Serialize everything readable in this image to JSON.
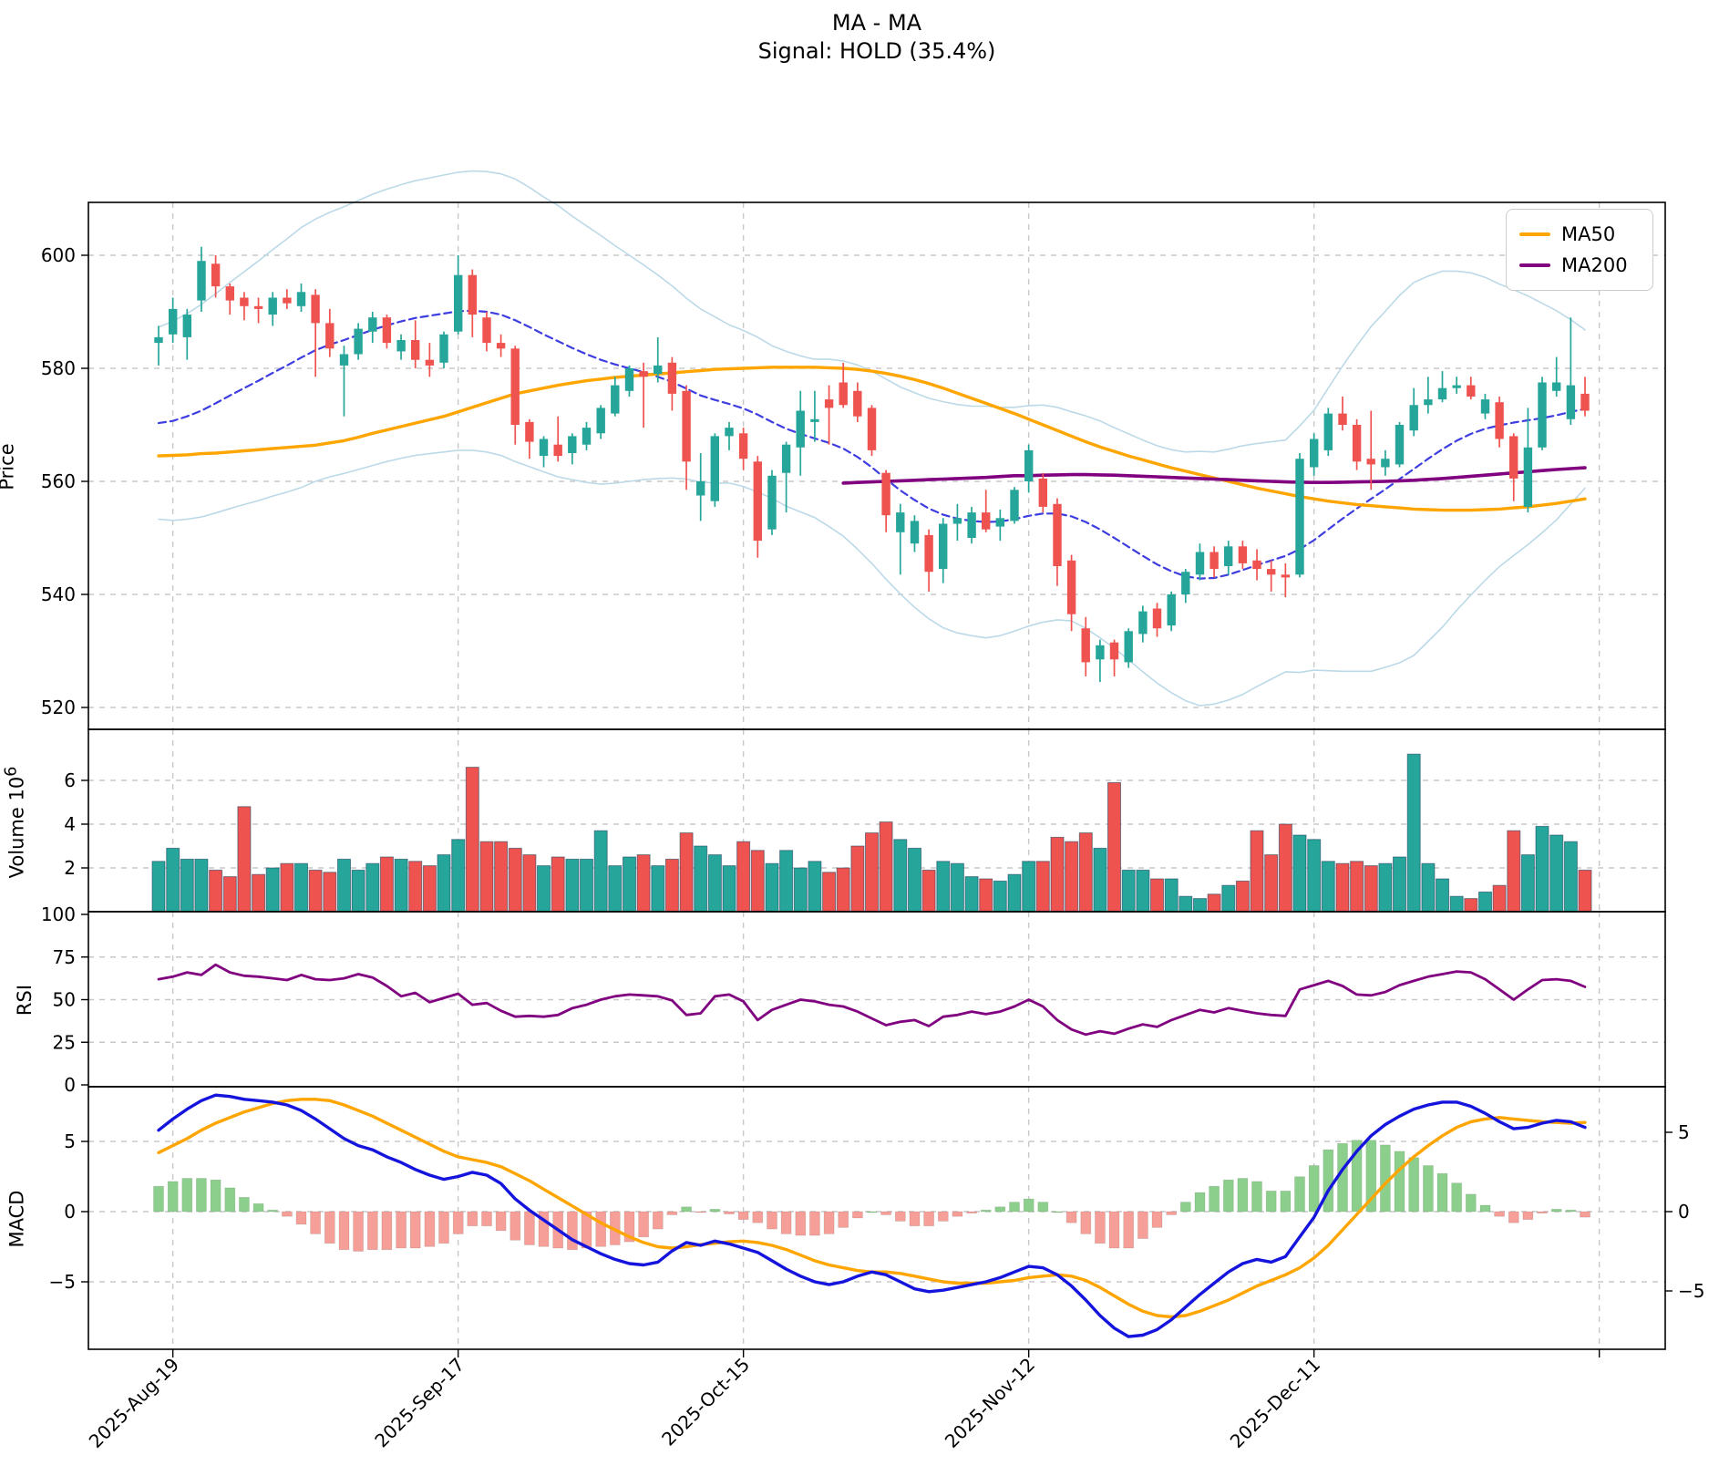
{
  "title": {
    "line1": "MA - MA",
    "line2": "Signal: HOLD (35.4%)"
  },
  "legend": [
    {
      "label": "MA50",
      "color": "#ffa500"
    },
    {
      "label": "MA200",
      "color": "#800080"
    }
  ],
  "axes": {
    "price_label": "Price",
    "volume_label": "Volume",
    "volume_label_base": "10",
    "volume_label_sup": "6",
    "rsi_label": "RSI",
    "macd_label": "MACD",
    "price_ticks": [
      600,
      580,
      560,
      540,
      520
    ],
    "volume_ticks": [
      6,
      4,
      2
    ],
    "rsi_ticks": [
      100,
      75,
      50,
      25,
      0
    ],
    "macd_left_ticks": [
      5,
      0,
      -5
    ],
    "macd_right_ticks": [
      5,
      0,
      -5
    ]
  },
  "chart_data": {
    "type": "candlestick",
    "title": "MA - MA",
    "subtitle": "Signal: HOLD (35.4%)",
    "x_ticks": [
      {
        "day": 1,
        "label": "2025-Aug-19"
      },
      {
        "day": 21,
        "label": "2025-Sep-17"
      },
      {
        "day": 41,
        "label": "2025-Oct-15"
      },
      {
        "day": 61,
        "label": "2025-Nov-12"
      },
      {
        "day": 81,
        "label": "2025-Dec-11"
      },
      {
        "day": 101,
        "label": ""
      }
    ],
    "price_ylim": [
      516,
      609.5
    ],
    "volume_ylim": [
      0,
      8.3
    ],
    "rsi_ylim": [
      0,
      100
    ],
    "macd_left_ylim": [
      -9.8,
      8.9
    ],
    "macd_right_ylim": [
      -8.7,
      7.9
    ],
    "colors": {
      "up": "#26a69a",
      "down": "#ef5350",
      "ma50": "#ffa500",
      "ma200": "#800080",
      "bb_band": "#bcd9e8",
      "bb_mid": "#3d3de0",
      "macd_line": "#1414dd",
      "macd_signal": "#ffa500",
      "hist_up": "#8ccf8c",
      "hist_down": "#f59f98",
      "rsi_line": "#800080",
      "grid": "#c8c8c8"
    },
    "ohlc": [
      [
        584.5,
        587.5,
        580.5,
        585.5
      ],
      [
        586,
        592.5,
        584.5,
        590.5
      ],
      [
        585.5,
        590.5,
        581.5,
        589.5
      ],
      [
        592,
        601.5,
        590,
        599
      ],
      [
        598.5,
        600,
        592.5,
        594.5
      ],
      [
        594.5,
        595,
        589.5,
        592
      ],
      [
        592.5,
        593.5,
        588.5,
        591
      ],
      [
        591,
        592.5,
        588,
        590.5
      ],
      [
        589.5,
        593.5,
        587.5,
        592.5
      ],
      [
        592.5,
        594,
        590.5,
        591.5
      ],
      [
        591,
        595,
        590,
        593.5
      ],
      [
        593,
        594,
        578.5,
        588
      ],
      [
        588,
        590.5,
        582,
        583.5
      ],
      [
        580.5,
        584,
        571.5,
        582.5
      ],
      [
        582.5,
        588,
        581.5,
        587
      ],
      [
        586.5,
        590,
        584.5,
        589
      ],
      [
        589,
        589.5,
        583.5,
        584.5
      ],
      [
        583,
        586,
        581.5,
        585
      ],
      [
        585,
        588.5,
        580,
        581.5
      ],
      [
        581.5,
        584.5,
        578.5,
        580.5
      ],
      [
        581,
        586.5,
        580,
        586
      ],
      [
        586.5,
        600,
        586,
        596.5
      ],
      [
        596.5,
        597.5,
        585.5,
        589.5
      ],
      [
        589,
        590,
        583,
        584.5
      ],
      [
        584.5,
        586,
        582,
        583.5
      ],
      [
        583.5,
        584,
        566.5,
        570
      ],
      [
        570.5,
        571,
        564,
        567
      ],
      [
        564.5,
        568,
        562.5,
        567.5
      ],
      [
        566.5,
        571.5,
        563.5,
        564.5
      ],
      [
        565,
        568.5,
        563,
        568
      ],
      [
        566.5,
        570.5,
        565.5,
        569.5
      ],
      [
        568.5,
        573.5,
        567.5,
        573
      ],
      [
        572,
        578.5,
        571.5,
        577
      ],
      [
        576,
        580.5,
        575,
        580
      ],
      [
        579.5,
        581,
        569.5,
        578.5
      ],
      [
        579,
        585.5,
        577.5,
        580.5
      ],
      [
        581,
        582,
        572.5,
        575.5
      ],
      [
        576,
        577,
        558.5,
        563.5
      ],
      [
        557.5,
        565,
        553,
        560
      ],
      [
        556.5,
        568.5,
        555.5,
        568
      ],
      [
        568,
        570.5,
        565.5,
        569.5
      ],
      [
        568.5,
        569.5,
        562,
        564
      ],
      [
        563.5,
        564.5,
        546.5,
        549.5
      ],
      [
        551.5,
        562,
        550.5,
        561
      ],
      [
        561.5,
        567,
        554.5,
        566.5
      ],
      [
        566,
        576,
        561,
        572.5
      ],
      [
        570.5,
        576,
        567,
        571
      ],
      [
        574.5,
        577,
        566.5,
        573
      ],
      [
        577.5,
        581,
        573,
        573.5
      ],
      [
        576,
        577.5,
        570.5,
        571.5
      ],
      [
        573,
        573.5,
        564.5,
        565.5
      ],
      [
        561.5,
        562,
        551,
        554
      ],
      [
        551,
        556,
        543.5,
        554.5
      ],
      [
        549,
        554,
        547.5,
        553
      ],
      [
        550.5,
        551.5,
        540.5,
        544
      ],
      [
        544.5,
        553.5,
        542,
        552.5
      ],
      [
        552.5,
        556,
        549.5,
        553.5
      ],
      [
        550,
        555.5,
        549,
        554.5
      ],
      [
        554.5,
        558.5,
        551,
        551.5
      ],
      [
        552,
        555,
        549.5,
        553.5
      ],
      [
        553,
        559,
        552.5,
        558.5
      ],
      [
        560,
        566.5,
        558,
        565.5
      ],
      [
        560.5,
        561.5,
        554.5,
        555.5
      ],
      [
        556,
        557,
        541.5,
        545
      ],
      [
        546,
        547,
        533.5,
        536.5
      ],
      [
        534,
        536,
        525.5,
        528
      ],
      [
        528.5,
        532,
        524.5,
        531
      ],
      [
        531.5,
        532,
        525.5,
        528.5
      ],
      [
        528,
        534,
        527,
        533.5
      ],
      [
        533,
        538,
        531.5,
        537
      ],
      [
        537.5,
        538.5,
        532.5,
        534
      ],
      [
        534.5,
        540.5,
        533.5,
        540
      ],
      [
        540,
        544.5,
        538.5,
        544
      ],
      [
        543.5,
        549,
        542.5,
        547.5
      ],
      [
        547.5,
        548.5,
        543,
        544.5
      ],
      [
        545,
        549.5,
        543.5,
        548.5
      ],
      [
        548.5,
        549.5,
        544.5,
        545.5
      ],
      [
        546,
        548,
        542.5,
        544.5
      ],
      [
        544.5,
        546,
        540.5,
        543.5
      ],
      [
        543.5,
        545.5,
        539.5,
        543
      ],
      [
        543.5,
        565,
        543,
        564
      ],
      [
        562.5,
        568.5,
        561,
        567.5
      ],
      [
        565.5,
        573,
        564.5,
        572
      ],
      [
        572,
        575,
        569,
        570
      ],
      [
        570,
        571,
        562,
        563.5
      ],
      [
        564,
        572.5,
        558.5,
        563
      ],
      [
        562.5,
        565.5,
        561,
        564
      ],
      [
        563,
        570.5,
        562.5,
        570
      ],
      [
        569,
        576.5,
        568,
        573.5
      ],
      [
        573.5,
        578.5,
        572,
        574.5
      ],
      [
        574.5,
        579.5,
        574,
        576.5
      ],
      [
        576.5,
        578.5,
        575.5,
        577
      ],
      [
        577,
        578.5,
        574.5,
        575
      ],
      [
        572,
        575.5,
        571,
        574.5
      ],
      [
        574,
        575,
        566,
        567.5
      ],
      [
        568,
        568.5,
        556.5,
        560.5
      ],
      [
        555.5,
        573,
        554.5,
        566
      ],
      [
        566,
        578.5,
        565.5,
        577.5
      ],
      [
        576,
        582,
        575,
        577.5
      ],
      [
        571,
        589,
        570,
        577
      ],
      [
        575.5,
        578.5,
        571.5,
        572.5
      ]
    ],
    "volume": [
      2.3,
      2.9,
      2.4,
      2.4,
      1.9,
      1.6,
      4.8,
      1.7,
      2.0,
      2.2,
      2.2,
      1.9,
      1.8,
      2.4,
      1.9,
      2.2,
      2.5,
      2.4,
      2.3,
      2.1,
      2.6,
      3.3,
      6.6,
      3.2,
      3.2,
      2.9,
      2.6,
      2.1,
      2.5,
      2.4,
      2.4,
      3.7,
      2.1,
      2.5,
      2.6,
      2.1,
      2.4,
      3.6,
      3.0,
      2.6,
      2.1,
      3.2,
      2.8,
      2.2,
      2.8,
      2.0,
      2.3,
      1.8,
      2.0,
      3.0,
      3.6,
      4.1,
      3.3,
      2.9,
      1.9,
      2.3,
      2.2,
      1.6,
      1.5,
      1.4,
      1.7,
      2.3,
      2.3,
      3.4,
      3.2,
      3.6,
      2.9,
      5.9,
      1.9,
      1.9,
      1.5,
      1.5,
      0.7,
      0.6,
      0.8,
      1.2,
      1.4,
      3.7,
      2.6,
      4.0,
      3.5,
      3.3,
      2.3,
      2.2,
      2.3,
      2.1,
      2.2,
      2.5,
      7.2,
      2.2,
      1.5,
      0.7,
      0.6,
      0.9,
      1.2,
      3.7,
      2.6,
      3.9,
      3.5,
      3.2,
      1.9
    ],
    "ma50": [
      564.5,
      564.6,
      564.7,
      564.9,
      565.0,
      565.2,
      565.4,
      565.6,
      565.8,
      566.0,
      566.2,
      566.4,
      566.8,
      567.2,
      567.8,
      568.5,
      569.1,
      569.7,
      570.3,
      570.9,
      571.5,
      572.3,
      573.1,
      573.9,
      574.7,
      575.5,
      576.0,
      576.5,
      577.0,
      577.4,
      577.8,
      578.1,
      578.4,
      578.6,
      578.8,
      579.0,
      579.2,
      579.4,
      579.6,
      579.8,
      579.9,
      580.0,
      580.1,
      580.2,
      580.2,
      580.2,
      580.2,
      580.1,
      580.0,
      579.8,
      579.5,
      579.1,
      578.6,
      578.0,
      577.3,
      576.5,
      575.6,
      574.7,
      573.8,
      572.9,
      572.0,
      571.0,
      570.0,
      569.0,
      568.0,
      567.0,
      566.1,
      565.3,
      564.5,
      563.8,
      563.1,
      562.4,
      561.8,
      561.2,
      560.6,
      560.0,
      559.4,
      558.8,
      558.3,
      557.8,
      557.3,
      556.9,
      556.5,
      556.2,
      555.9,
      555.7,
      555.5,
      555.3,
      555.1,
      555.0,
      554.9,
      554.9,
      554.9,
      555.0,
      555.1,
      555.3,
      555.5,
      555.8,
      556.1,
      556.5,
      556.9
    ],
    "ma200": [
      null,
      null,
      null,
      null,
      null,
      null,
      null,
      null,
      null,
      null,
      null,
      null,
      null,
      null,
      null,
      null,
      null,
      null,
      null,
      null,
      null,
      null,
      null,
      null,
      null,
      null,
      null,
      null,
      null,
      null,
      null,
      null,
      null,
      null,
      null,
      null,
      null,
      null,
      null,
      null,
      null,
      null,
      null,
      null,
      null,
      null,
      null,
      null,
      559.7,
      559.8,
      559.9,
      560.0,
      560.1,
      560.2,
      560.3,
      560.4,
      560.5,
      560.6,
      560.7,
      560.85,
      561.0,
      561.0,
      561.1,
      561.15,
      561.2,
      561.2,
      561.15,
      561.1,
      561.0,
      560.9,
      560.8,
      560.7,
      560.6,
      560.5,
      560.4,
      560.3,
      560.2,
      560.1,
      560.0,
      559.9,
      559.85,
      559.8,
      559.8,
      559.85,
      559.9,
      559.95,
      560.0,
      560.1,
      560.2,
      560.35,
      560.5,
      560.7,
      560.9,
      561.1,
      561.3,
      561.5,
      561.7,
      561.9,
      562.1,
      562.25,
      562.4
    ],
    "bb_mid": [
      570.3,
      570.7,
      571.5,
      572.5,
      573.8,
      575.2,
      576.5,
      577.8,
      579.2,
      580.5,
      581.9,
      583.2,
      584.2,
      585.0,
      585.9,
      586.8,
      587.6,
      588.3,
      588.9,
      589.3,
      589.7,
      590.1,
      590.2,
      590.0,
      589.5,
      588.5,
      587.3,
      586.0,
      584.8,
      583.6,
      582.5,
      581.5,
      580.7,
      580.0,
      579.3,
      578.5,
      577.6,
      576.4,
      575.2,
      574.4,
      573.7,
      572.9,
      571.8,
      570.5,
      569.3,
      568.4,
      567.6,
      566.8,
      565.8,
      564.3,
      562.5,
      560.4,
      558.4,
      556.7,
      555.2,
      554.1,
      553.4,
      553.0,
      552.8,
      552.9,
      553.3,
      553.9,
      554.3,
      554.3,
      553.8,
      552.8,
      551.5,
      550.0,
      548.4,
      546.8,
      545.3,
      544.1,
      543.2,
      542.8,
      542.9,
      543.5,
      544.3,
      545.2,
      546.0,
      546.8,
      548.0,
      549.6,
      551.5,
      553.4,
      555.2,
      556.9,
      558.6,
      560.4,
      562.2,
      564.0,
      565.7,
      567.2,
      568.4,
      569.3,
      569.9,
      570.4,
      570.8,
      571.2,
      571.7,
      572.3,
      572.8
    ],
    "bb_halfwidth": [
      17,
      17.6,
      18.2,
      18.8,
      19.4,
      20,
      20.6,
      21.2,
      21.8,
      22.4,
      23,
      23.2,
      23.4,
      23.6,
      23.8,
      24,
      24.1,
      24.2,
      24.3,
      24.4,
      24.5,
      24.6,
      24.7,
      24.8,
      24.9,
      25,
      24.7,
      24.3,
      24,
      23.3,
      22.7,
      22,
      21,
      20,
      19,
      18,
      17,
      16,
      15.3,
      14.7,
      14,
      13.8,
      13.7,
      13.5,
      13.7,
      13.8,
      14,
      14.8,
      15.5,
      16.3,
      17,
      17.7,
      18.3,
      19,
      19.5,
      20,
      20.2,
      20.3,
      20.5,
      20.2,
      19.8,
      19.5,
      19.2,
      18.8,
      18.5,
      18.8,
      19.2,
      19.5,
      20,
      20.5,
      21,
      21.5,
      22,
      22.5,
      22.3,
      22.2,
      22,
      21.5,
      21,
      20.5,
      21.8,
      23,
      25,
      27,
      28.8,
      30.5,
      31.5,
      32.5,
      33,
      32.3,
      31.5,
      30,
      28.5,
      26.8,
      25,
      23.5,
      22,
      20.3,
      18.5,
      16.3,
      14
    ],
    "rsi": [
      62,
      63.5,
      66,
      64.5,
      70.5,
      66,
      64,
      63.5,
      62.5,
      61.5,
      64.5,
      62,
      61.5,
      62.5,
      65,
      63,
      58,
      52,
      54,
      48.5,
      51,
      53.5,
      47,
      48,
      43.5,
      40,
      40.5,
      40,
      41,
      45,
      47,
      50,
      52,
      53,
      52.5,
      52,
      49.5,
      41,
      42,
      52,
      53,
      49,
      38,
      44,
      47,
      50,
      49,
      47,
      46,
      43,
      39,
      35,
      37,
      38,
      34.5,
      40,
      41,
      43,
      41.5,
      43,
      46,
      50,
      46,
      38,
      32.5,
      29.5,
      31.5,
      30,
      33,
      35.5,
      34,
      38,
      41,
      44,
      42.5,
      45,
      43.5,
      42,
      41,
      40.5,
      56,
      58.5,
      61,
      58,
      53,
      52.5,
      54.5,
      58.5,
      61,
      63.5,
      65,
      66.5,
      66,
      62,
      56,
      50,
      56,
      61.5,
      62,
      61,
      57.5
    ],
    "macd": [
      5.8,
      6.6,
      7.3,
      7.9,
      8.3,
      8.2,
      8.0,
      7.9,
      7.8,
      7.6,
      7.2,
      6.6,
      5.9,
      5.2,
      4.7,
      4.4,
      3.9,
      3.5,
      3.0,
      2.6,
      2.3,
      2.5,
      2.8,
      2.6,
      2.0,
      0.9,
      0.1,
      -0.6,
      -1.3,
      -2.0,
      -2.5,
      -3.0,
      -3.4,
      -3.7,
      -3.8,
      -3.6,
      -2.8,
      -2.2,
      -2.4,
      -2.1,
      -2.3,
      -2.6,
      -2.9,
      -3.5,
      -4.1,
      -4.6,
      -5.0,
      -5.2,
      -5.0,
      -4.6,
      -4.3,
      -4.5,
      -5.0,
      -5.5,
      -5.7,
      -5.6,
      -5.4,
      -5.2,
      -5.0,
      -4.7,
      -4.3,
      -3.9,
      -4.0,
      -4.5,
      -5.3,
      -6.3,
      -7.4,
      -8.3,
      -8.9,
      -8.8,
      -8.4,
      -7.7,
      -6.8,
      -5.9,
      -5.1,
      -4.3,
      -3.7,
      -3.4,
      -3.6,
      -3.2,
      -1.8,
      -0.4,
      1.5,
      3.0,
      4.3,
      5.4,
      6.2,
      6.8,
      7.3,
      7.6,
      7.8,
      7.8,
      7.5,
      7.0,
      6.4,
      5.9,
      6.0,
      6.3,
      6.5,
      6.4,
      6.0
    ],
    "macd_signal": [
      4.2,
      4.7,
      5.2,
      5.8,
      6.3,
      6.7,
      7.1,
      7.4,
      7.7,
      7.9,
      8.0,
      8.0,
      7.9,
      7.6,
      7.2,
      6.8,
      6.3,
      5.8,
      5.3,
      4.8,
      4.3,
      3.9,
      3.7,
      3.5,
      3.2,
      2.7,
      2.2,
      1.6,
      1.0,
      0.4,
      -0.2,
      -0.8,
      -1.3,
      -1.8,
      -2.2,
      -2.5,
      -2.6,
      -2.5,
      -2.35,
      -2.25,
      -2.15,
      -2.1,
      -2.2,
      -2.4,
      -2.7,
      -3.1,
      -3.5,
      -3.8,
      -4.0,
      -4.2,
      -4.3,
      -4.3,
      -4.4,
      -4.6,
      -4.8,
      -5.0,
      -5.1,
      -5.1,
      -5.1,
      -5.0,
      -4.9,
      -4.7,
      -4.6,
      -4.5,
      -4.6,
      -4.9,
      -5.4,
      -6.0,
      -6.6,
      -7.1,
      -7.4,
      -7.5,
      -7.4,
      -7.1,
      -6.7,
      -6.3,
      -5.8,
      -5.3,
      -4.9,
      -4.5,
      -4.0,
      -3.3,
      -2.4,
      -1.3,
      -0.2,
      0.9,
      2.0,
      3.0,
      3.9,
      4.7,
      5.4,
      6.0,
      6.4,
      6.6,
      6.7,
      6.6,
      6.5,
      6.4,
      6.35,
      6.3,
      6.35
    ]
  }
}
